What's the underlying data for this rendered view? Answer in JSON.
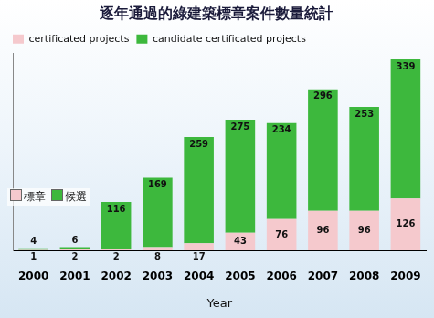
{
  "chart_data": {
    "type": "bar",
    "title": "逐年通過的綠建築標章案件數量統計",
    "x_label": "Year",
    "categories": [
      "2000",
      "2001",
      "2002",
      "2003",
      "2004",
      "2005",
      "2006",
      "2007",
      "2008",
      "2009"
    ],
    "series": [
      {
        "name": "certificated projects",
        "color": "#f5c9cd",
        "values": [
          1,
          2,
          2,
          8,
          17,
          43,
          76,
          96,
          96,
          126
        ]
      },
      {
        "name": "candidate certificated projects",
        "color": "#3db83d",
        "values": [
          4,
          6,
          116,
          169,
          259,
          275,
          234,
          296,
          253,
          339
        ]
      }
    ],
    "annotations": [
      "標章",
      "候選"
    ],
    "ylim": [
      0,
      480
    ],
    "stacked": true,
    "data_labels": true,
    "grid": false,
    "legend": "top-left",
    "tick_labels": "x"
  }
}
